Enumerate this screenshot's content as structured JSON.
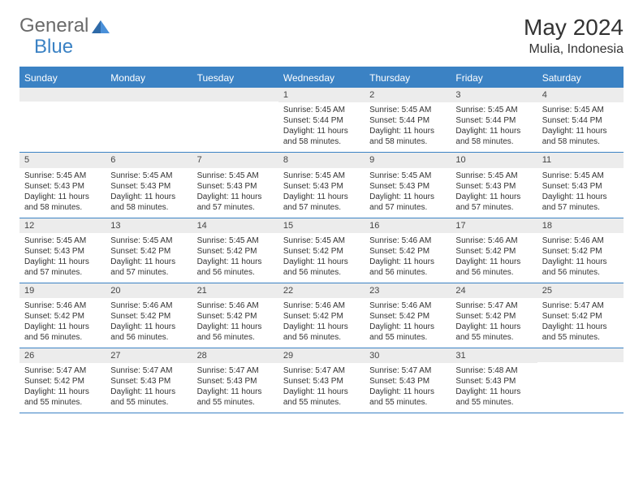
{
  "brand": {
    "part1": "General",
    "part2": "Blue"
  },
  "title": "May 2024",
  "location": "Mulia, Indonesia",
  "colors": {
    "accent": "#3b82c4",
    "dayBg": "#ececec",
    "text": "#333333"
  },
  "dow": [
    "Sunday",
    "Monday",
    "Tuesday",
    "Wednesday",
    "Thursday",
    "Friday",
    "Saturday"
  ],
  "weeks": [
    [
      null,
      null,
      null,
      {
        "d": "1",
        "sr": "5:45 AM",
        "ss": "5:44 PM",
        "dl": "11 hours and 58 minutes."
      },
      {
        "d": "2",
        "sr": "5:45 AM",
        "ss": "5:44 PM",
        "dl": "11 hours and 58 minutes."
      },
      {
        "d": "3",
        "sr": "5:45 AM",
        "ss": "5:44 PM",
        "dl": "11 hours and 58 minutes."
      },
      {
        "d": "4",
        "sr": "5:45 AM",
        "ss": "5:44 PM",
        "dl": "11 hours and 58 minutes."
      }
    ],
    [
      {
        "d": "5",
        "sr": "5:45 AM",
        "ss": "5:43 PM",
        "dl": "11 hours and 58 minutes."
      },
      {
        "d": "6",
        "sr": "5:45 AM",
        "ss": "5:43 PM",
        "dl": "11 hours and 58 minutes."
      },
      {
        "d": "7",
        "sr": "5:45 AM",
        "ss": "5:43 PM",
        "dl": "11 hours and 57 minutes."
      },
      {
        "d": "8",
        "sr": "5:45 AM",
        "ss": "5:43 PM",
        "dl": "11 hours and 57 minutes."
      },
      {
        "d": "9",
        "sr": "5:45 AM",
        "ss": "5:43 PM",
        "dl": "11 hours and 57 minutes."
      },
      {
        "d": "10",
        "sr": "5:45 AM",
        "ss": "5:43 PM",
        "dl": "11 hours and 57 minutes."
      },
      {
        "d": "11",
        "sr": "5:45 AM",
        "ss": "5:43 PM",
        "dl": "11 hours and 57 minutes."
      }
    ],
    [
      {
        "d": "12",
        "sr": "5:45 AM",
        "ss": "5:43 PM",
        "dl": "11 hours and 57 minutes."
      },
      {
        "d": "13",
        "sr": "5:45 AM",
        "ss": "5:42 PM",
        "dl": "11 hours and 57 minutes."
      },
      {
        "d": "14",
        "sr": "5:45 AM",
        "ss": "5:42 PM",
        "dl": "11 hours and 56 minutes."
      },
      {
        "d": "15",
        "sr": "5:45 AM",
        "ss": "5:42 PM",
        "dl": "11 hours and 56 minutes."
      },
      {
        "d": "16",
        "sr": "5:46 AM",
        "ss": "5:42 PM",
        "dl": "11 hours and 56 minutes."
      },
      {
        "d": "17",
        "sr": "5:46 AM",
        "ss": "5:42 PM",
        "dl": "11 hours and 56 minutes."
      },
      {
        "d": "18",
        "sr": "5:46 AM",
        "ss": "5:42 PM",
        "dl": "11 hours and 56 minutes."
      }
    ],
    [
      {
        "d": "19",
        "sr": "5:46 AM",
        "ss": "5:42 PM",
        "dl": "11 hours and 56 minutes."
      },
      {
        "d": "20",
        "sr": "5:46 AM",
        "ss": "5:42 PM",
        "dl": "11 hours and 56 minutes."
      },
      {
        "d": "21",
        "sr": "5:46 AM",
        "ss": "5:42 PM",
        "dl": "11 hours and 56 minutes."
      },
      {
        "d": "22",
        "sr": "5:46 AM",
        "ss": "5:42 PM",
        "dl": "11 hours and 56 minutes."
      },
      {
        "d": "23",
        "sr": "5:46 AM",
        "ss": "5:42 PM",
        "dl": "11 hours and 55 minutes."
      },
      {
        "d": "24",
        "sr": "5:47 AM",
        "ss": "5:42 PM",
        "dl": "11 hours and 55 minutes."
      },
      {
        "d": "25",
        "sr": "5:47 AM",
        "ss": "5:42 PM",
        "dl": "11 hours and 55 minutes."
      }
    ],
    [
      {
        "d": "26",
        "sr": "5:47 AM",
        "ss": "5:42 PM",
        "dl": "11 hours and 55 minutes."
      },
      {
        "d": "27",
        "sr": "5:47 AM",
        "ss": "5:43 PM",
        "dl": "11 hours and 55 minutes."
      },
      {
        "d": "28",
        "sr": "5:47 AM",
        "ss": "5:43 PM",
        "dl": "11 hours and 55 minutes."
      },
      {
        "d": "29",
        "sr": "5:47 AM",
        "ss": "5:43 PM",
        "dl": "11 hours and 55 minutes."
      },
      {
        "d": "30",
        "sr": "5:47 AM",
        "ss": "5:43 PM",
        "dl": "11 hours and 55 minutes."
      },
      {
        "d": "31",
        "sr": "5:48 AM",
        "ss": "5:43 PM",
        "dl": "11 hours and 55 minutes."
      },
      null
    ]
  ],
  "labels": {
    "sunrise": "Sunrise: ",
    "sunset": "Sunset: ",
    "daylight": "Daylight: "
  }
}
